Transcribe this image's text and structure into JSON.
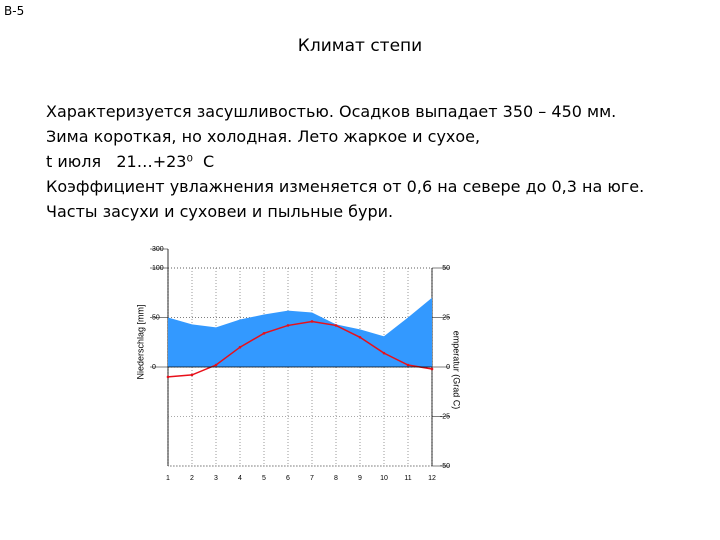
{
  "slide": {
    "label": "В-5",
    "title": "Климат степи",
    "lines": [
      "Характеризуется засушливостью. Осадков выпадает 350 – 450 мм.",
      "Зима короткая, но холодная. Лето жаркое и сухое,",
      "t июля   21…+23⁰  С",
      "Коэффициент увлажнения изменяется от 0,6 на севере до 0,3 на юге.",
      "Часты засухи и суховеи и пыльные бури."
    ]
  },
  "chart_data": {
    "type": "area",
    "y_label": "Niederschlag [mm]",
    "y2_label": "emperatur (Grad C)",
    "x": [
      1,
      2,
      3,
      4,
      5,
      6,
      7,
      8,
      9,
      10,
      11,
      12
    ],
    "series": [
      {
        "color": "#3399ff",
        "values": [
          50,
          43,
          40,
          48,
          53,
          57,
          55,
          43,
          38,
          31,
          50,
          70
        ]
      },
      {
        "type": "line",
        "axis": "y2",
        "color": "#e8101a",
        "values": [
          -5,
          -4,
          1,
          10,
          17,
          21,
          23,
          21,
          15,
          7,
          1,
          -1
        ]
      }
    ],
    "ylim": [
      -100,
      300
    ],
    "yticks": [
      0,
      50,
      100,
      300
    ],
    "y2lim": [
      -50,
      50
    ],
    "y2ticks": [
      -50,
      -25,
      0,
      25,
      50
    ],
    "grid": true
  }
}
